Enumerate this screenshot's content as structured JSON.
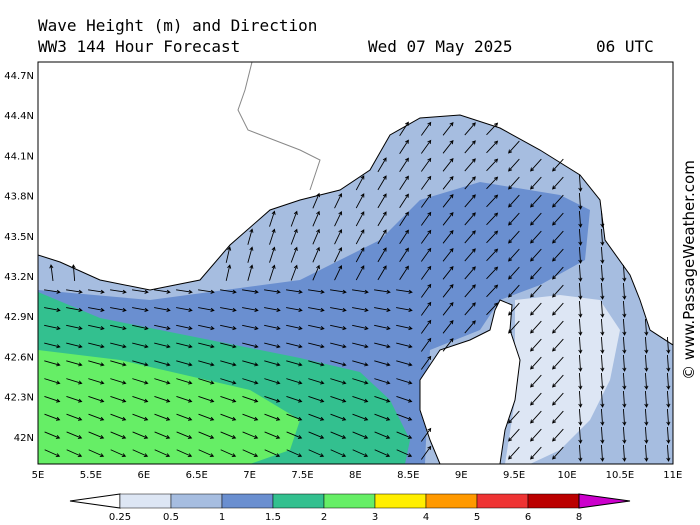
{
  "header": {
    "line1": "Wave Height (m) and Direction",
    "line2": "WW3 144 Hour Forecast",
    "date": "Wed 07 May 2025",
    "time": "06 UTC"
  },
  "lat_labels": [
    "44.7N",
    "44.4N",
    "44.1N",
    "43.8N",
    "43.5N",
    "43.2N",
    "42.9N",
    "42.6N",
    "42.3N",
    "42N"
  ],
  "lon_labels": [
    "5E",
    "5.5E",
    "6E",
    "6.5E",
    "7E",
    "7.5E",
    "8E",
    "8.5E",
    "9E",
    "9.5E",
    "10E",
    "10.5E",
    "11E"
  ],
  "legend_labels": [
    "0.25",
    "0.5",
    "1",
    "1.5",
    "2",
    "3",
    "4",
    "5",
    "6",
    "8"
  ],
  "credit": "© www.PassageWeather.com"
}
